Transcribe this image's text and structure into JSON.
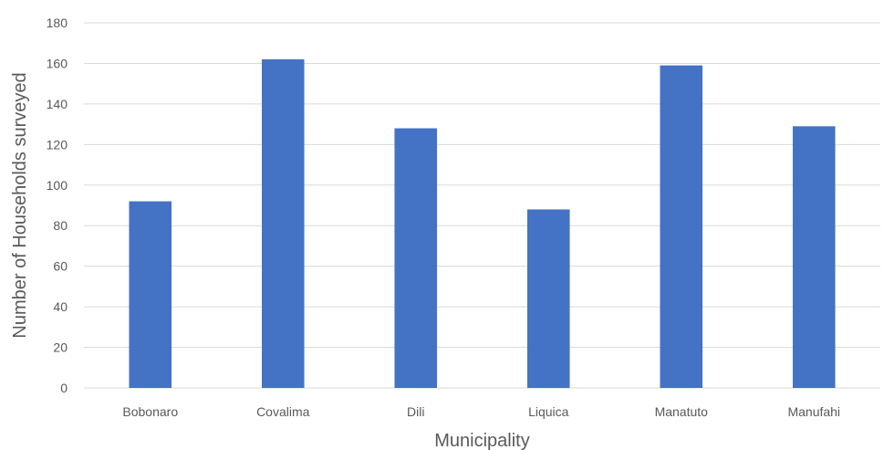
{
  "chart_data": {
    "type": "bar",
    "title": "",
    "xlabel": "Municipality",
    "ylabel": "Number of Households surveyed",
    "categories": [
      "Bobonaro",
      "Covalima",
      "Dili",
      "Liquica",
      "Manatuto",
      "Manufahi"
    ],
    "values": [
      92,
      162,
      128,
      88,
      159,
      129
    ],
    "ylim": [
      0,
      180
    ],
    "yticks": [
      0,
      20,
      40,
      60,
      80,
      100,
      120,
      140,
      160,
      180
    ],
    "grid": true,
    "legend": "none",
    "bar_color": "#4472C4"
  }
}
